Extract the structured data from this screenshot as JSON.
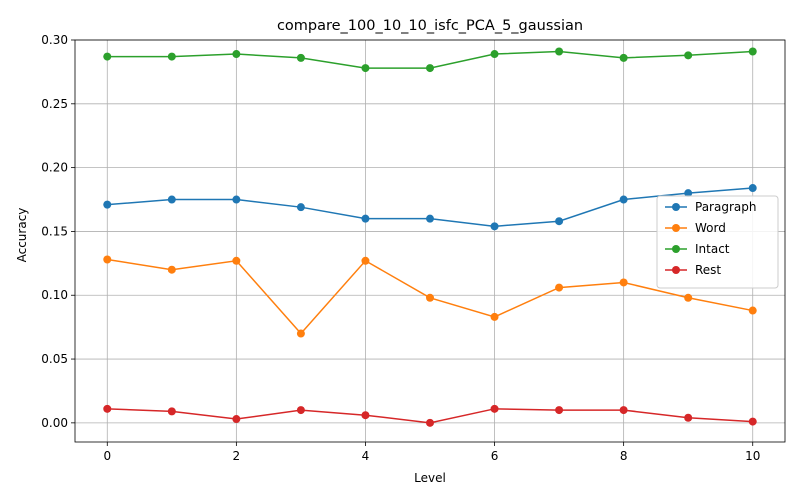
{
  "chart_data": {
    "type": "line",
    "title": "compare_100_10_10_isfc_PCA_5_gaussian",
    "xlabel": "Level",
    "ylabel": "Accuracy",
    "x": [
      0,
      1,
      2,
      3,
      4,
      5,
      6,
      7,
      8,
      9,
      10
    ],
    "xlim": [
      -0.5,
      10.5
    ],
    "ylim": [
      -0.015,
      0.3
    ],
    "x_ticks": [
      0,
      2,
      4,
      6,
      8,
      10
    ],
    "y_ticks": [
      0.0,
      0.05,
      0.1,
      0.15,
      0.2,
      0.25,
      0.3
    ],
    "y_tick_labels": [
      "0.00",
      "0.05",
      "0.10",
      "0.15",
      "0.20",
      "0.25",
      "0.30"
    ],
    "grid": true,
    "legend_position": "center-right",
    "series": [
      {
        "name": "Paragraph",
        "color": "#1f77b4",
        "values": [
          0.171,
          0.175,
          0.175,
          0.169,
          0.16,
          0.16,
          0.154,
          0.158,
          0.175,
          0.18,
          0.184
        ]
      },
      {
        "name": "Word",
        "color": "#ff7f0e",
        "values": [
          0.128,
          0.12,
          0.127,
          0.07,
          0.127,
          0.098,
          0.083,
          0.106,
          0.11,
          0.098,
          0.088
        ]
      },
      {
        "name": "Intact",
        "color": "#2ca02c",
        "values": [
          0.287,
          0.287,
          0.289,
          0.286,
          0.278,
          0.278,
          0.289,
          0.291,
          0.286,
          0.288,
          0.291
        ]
      },
      {
        "name": "Rest",
        "color": "#d62728",
        "values": [
          0.011,
          0.009,
          0.003,
          0.01,
          0.006,
          0.0,
          0.011,
          0.01,
          0.01,
          0.004,
          0.001
        ]
      }
    ]
  }
}
